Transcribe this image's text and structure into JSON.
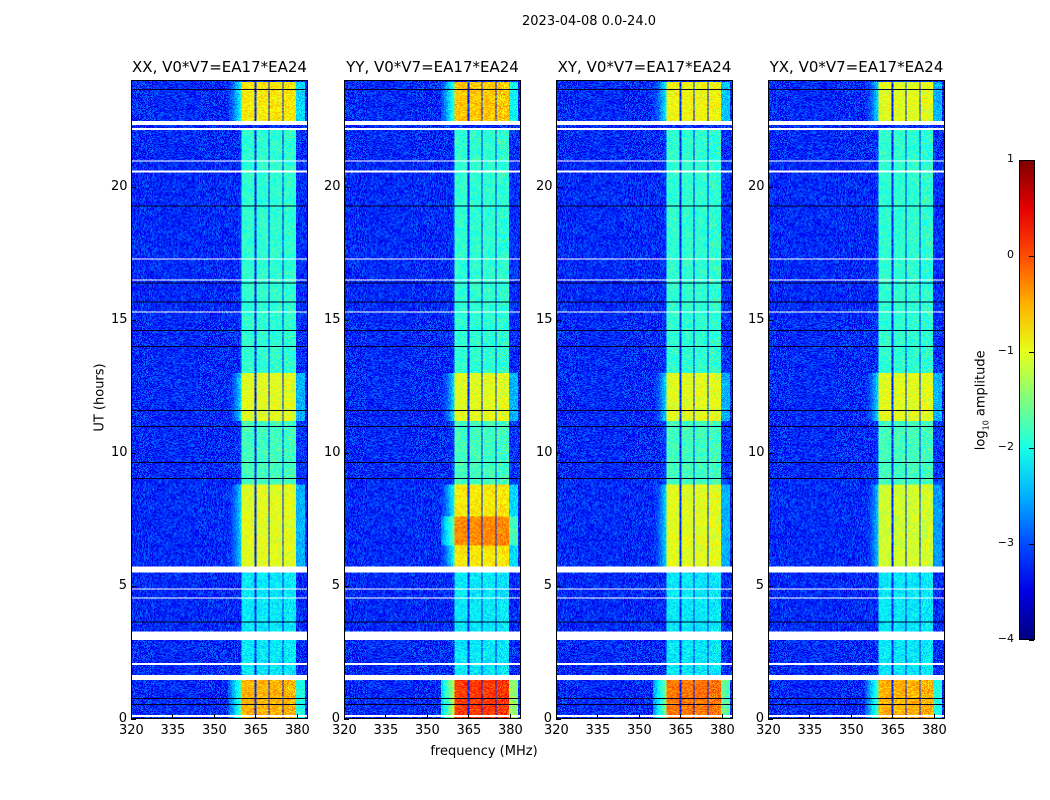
{
  "figure": {
    "suptitle": "2023-04-08 0.0-24.0",
    "ylabel": "UT (hours)",
    "xlabel": "frequency (MHz)"
  },
  "chart_data": {
    "type": "heatmap",
    "title": "2023-04-08 0.0-24.0",
    "xlabel": "frequency (MHz)",
    "ylabel": "UT (hours)",
    "xlim": [
      320,
      384
    ],
    "ylim": [
      0,
      24
    ],
    "xticks": [
      "320",
      "335",
      "350",
      "365",
      "380"
    ],
    "xtick_values": [
      320,
      335,
      350,
      365,
      380
    ],
    "yticks": [
      "0",
      "5",
      "10",
      "15",
      "20"
    ],
    "ytick_values": [
      0,
      5,
      10,
      15,
      20
    ],
    "colorbar": {
      "label_main": "log",
      "label_sub": "10",
      "label_rest": " amplitude",
      "range": [
        -4,
        1
      ],
      "ticks": [
        "1",
        "0",
        "−1",
        "−2",
        "−3",
        "−4"
      ],
      "tick_values": [
        1,
        0,
        -1,
        -2,
        -3,
        -4
      ],
      "colormap": "jet"
    },
    "background_level": -3.2,
    "rfi_band_mhz": [
      [
        360,
        364.8
      ],
      [
        365.3,
        369.6
      ],
      [
        370.1,
        374.6
      ],
      [
        375.1,
        380
      ]
    ],
    "flagged_hours_white": [
      [
        0.05,
        0.12
      ],
      [
        1.45,
        1.62
      ],
      [
        2.02,
        2.08
      ],
      [
        2.95,
        3.3
      ],
      [
        4.53,
        4.58
      ],
      [
        4.85,
        4.9
      ],
      [
        5.52,
        5.72
      ],
      [
        15.3,
        15.35
      ],
      [
        16.5,
        16.55
      ],
      [
        17.3,
        17.35
      ],
      [
        20.58,
        20.62
      ],
      [
        20.98,
        21.02
      ],
      [
        22.18,
        22.24
      ],
      [
        22.36,
        22.5
      ]
    ],
    "flagged_hours_black": [
      [
        0.5,
        0.54
      ],
      [
        0.74,
        0.78
      ],
      [
        3.63,
        3.68
      ],
      [
        9.03,
        9.08
      ],
      [
        9.63,
        9.68
      ],
      [
        10.98,
        11.03
      ],
      [
        11.58,
        11.62
      ],
      [
        13.98,
        14.03
      ],
      [
        14.58,
        14.62
      ],
      [
        15.68,
        15.73
      ],
      [
        16.38,
        16.43
      ],
      [
        19.28,
        19.33
      ],
      [
        23.68,
        23.73
      ]
    ],
    "panels": [
      {
        "title": "XX, V0*V7=EA17*EA24",
        "segments": [
          [
            0,
            1.45,
            -0.5
          ],
          [
            1.62,
            5.52,
            -2.2
          ],
          [
            5.72,
            8.8,
            -1.0
          ],
          [
            8.8,
            11.2,
            -1.8
          ],
          [
            11.2,
            13.0,
            -1.0
          ],
          [
            13.0,
            22.2,
            -1.9
          ],
          [
            22.5,
            24,
            -0.8
          ]
        ]
      },
      {
        "title": "YY, V0*V7=EA17*EA24",
        "segments": [
          [
            0,
            1.45,
            0.1
          ],
          [
            1.62,
            5.52,
            -2.2
          ],
          [
            5.72,
            6.5,
            -0.8
          ],
          [
            6.5,
            7.6,
            -0.3
          ],
          [
            7.6,
            8.8,
            -0.8
          ],
          [
            8.8,
            11.2,
            -1.8
          ],
          [
            11.2,
            13.0,
            -1.0
          ],
          [
            13.0,
            22.2,
            -1.9
          ],
          [
            22.5,
            24,
            -0.6
          ]
        ]
      },
      {
        "title": "XY, V0*V7=EA17*EA24",
        "segments": [
          [
            0,
            1.45,
            -0.2
          ],
          [
            1.62,
            5.52,
            -2.2
          ],
          [
            5.72,
            8.8,
            -1.0
          ],
          [
            8.8,
            11.2,
            -1.8
          ],
          [
            11.2,
            13.0,
            -1.0
          ],
          [
            13.0,
            22.2,
            -1.9
          ],
          [
            22.5,
            24,
            -0.9
          ]
        ]
      },
      {
        "title": "YX, V0*V7=EA17*EA24",
        "segments": [
          [
            0,
            1.45,
            -0.5
          ],
          [
            1.62,
            5.52,
            -2.2
          ],
          [
            5.72,
            8.8,
            -1.1
          ],
          [
            8.8,
            11.2,
            -1.8
          ],
          [
            11.2,
            13.0,
            -1.0
          ],
          [
            13.0,
            22.2,
            -1.9
          ],
          [
            22.5,
            24,
            -1.0
          ]
        ]
      }
    ]
  }
}
